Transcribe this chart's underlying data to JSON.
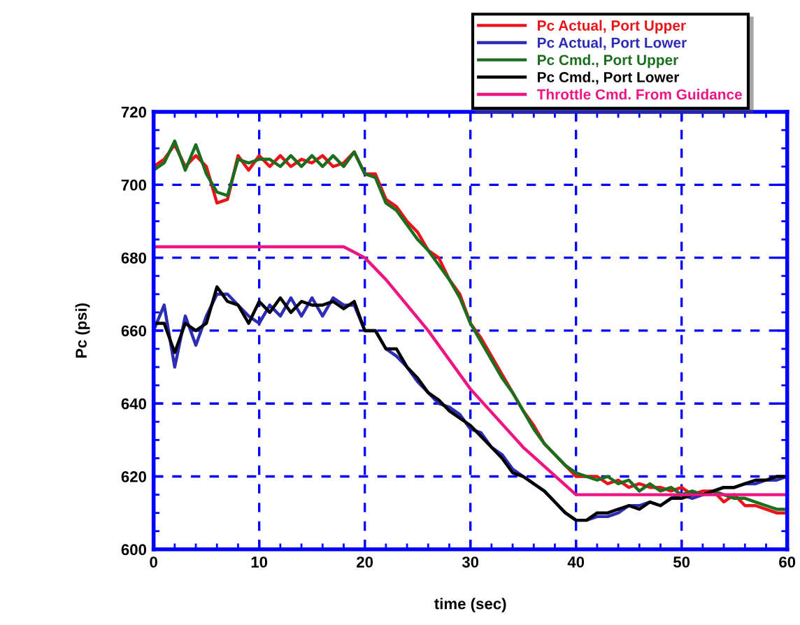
{
  "chart_data": {
    "type": "line",
    "xlabel": "time (sec)",
    "ylabel": "Pc (psi)",
    "xlim": [
      0,
      60
    ],
    "xticks": [
      0,
      10,
      20,
      30,
      40,
      50,
      60
    ],
    "ylim": [
      600,
      720
    ],
    "yticks": [
      600,
      620,
      640,
      660,
      680,
      700,
      720
    ],
    "grid": true,
    "legend": "top right",
    "line_style": "solid",
    "x": [
      0,
      1,
      2,
      3,
      4,
      5,
      6,
      7,
      8,
      9,
      10,
      11,
      12,
      13,
      14,
      15,
      16,
      17,
      18,
      19,
      20,
      21,
      22,
      23,
      24,
      25,
      26,
      27,
      28,
      29,
      30,
      31,
      32,
      33,
      34,
      35,
      36,
      37,
      38,
      39,
      40,
      41,
      42,
      43,
      44,
      45,
      46,
      47,
      48,
      49,
      50,
      51,
      52,
      53,
      54,
      55,
      56,
      57,
      58,
      59,
      60
    ],
    "series": [
      {
        "name": "Pc Actual, Port Upper",
        "color": "#e8141a",
        "values": [
          705,
          707,
          711,
          705,
          708,
          705,
          695,
          696,
          708,
          704,
          708,
          705,
          708,
          705,
          707,
          706,
          708,
          705,
          706,
          709,
          703,
          703,
          696,
          694,
          690,
          687,
          682,
          680,
          674,
          670,
          662,
          658,
          653,
          648,
          643,
          638,
          634,
          629,
          626,
          623,
          620,
          620,
          620,
          618,
          619,
          617,
          618,
          617,
          617,
          616,
          617,
          615,
          616,
          616,
          613,
          615,
          612,
          612,
          611,
          610,
          610
        ]
      },
      {
        "name": "Pc Actual, Port Lower",
        "color": "#2c2cb4",
        "values": [
          660,
          667,
          650,
          664,
          656,
          664,
          670,
          670,
          667,
          664,
          662,
          667,
          664,
          669,
          664,
          669,
          664,
          669,
          667,
          667,
          660,
          660,
          655,
          653,
          650,
          646,
          643,
          640,
          639,
          637,
          633,
          632,
          628,
          626,
          622,
          620,
          618,
          616,
          613,
          610,
          608,
          608,
          609,
          609,
          610,
          612,
          612,
          613,
          612,
          614,
          615,
          614,
          615,
          616,
          617,
          617,
          618,
          618,
          619,
          619,
          620
        ]
      },
      {
        "name": "Pc Cmd., Port Upper",
        "color": "#1a6e1e",
        "values": [
          704,
          706,
          712,
          704,
          711,
          703,
          698,
          697,
          707,
          706,
          707,
          707,
          705,
          708,
          705,
          708,
          705,
          708,
          705,
          709,
          703,
          702,
          695,
          693,
          689,
          685,
          682,
          678,
          674,
          669,
          662,
          657,
          652,
          647,
          643,
          638,
          633,
          629,
          626,
          623,
          621,
          620,
          619,
          620,
          618,
          619,
          616,
          618,
          616,
          617,
          615,
          616,
          615,
          616,
          615,
          614,
          614,
          613,
          612,
          611,
          611
        ]
      },
      {
        "name": "Pc Cmd., Port Lower",
        "color": "#000000",
        "values": [
          662,
          662,
          654,
          662,
          660,
          662,
          672,
          668,
          667,
          662,
          668,
          665,
          669,
          665,
          668,
          667,
          667,
          668,
          666,
          668,
          660,
          660,
          655,
          655,
          650,
          647,
          643,
          641,
          638,
          636,
          634,
          631,
          628,
          625,
          621,
          620,
          618,
          616,
          613,
          610,
          608,
          608,
          610,
          610,
          611,
          612,
          611,
          613,
          612,
          614,
          614,
          615,
          615,
          616,
          617,
          617,
          618,
          619,
          619,
          620,
          620
        ]
      },
      {
        "name": "Throttle Cmd. From Guidance",
        "color": "#ee1482",
        "x": [
          0,
          6,
          18,
          20,
          22,
          26,
          30,
          35,
          40,
          42,
          54,
          60
        ],
        "values": [
          683,
          683,
          683,
          680,
          674,
          660,
          644,
          628,
          615,
          615,
          615,
          615
        ]
      }
    ]
  }
}
